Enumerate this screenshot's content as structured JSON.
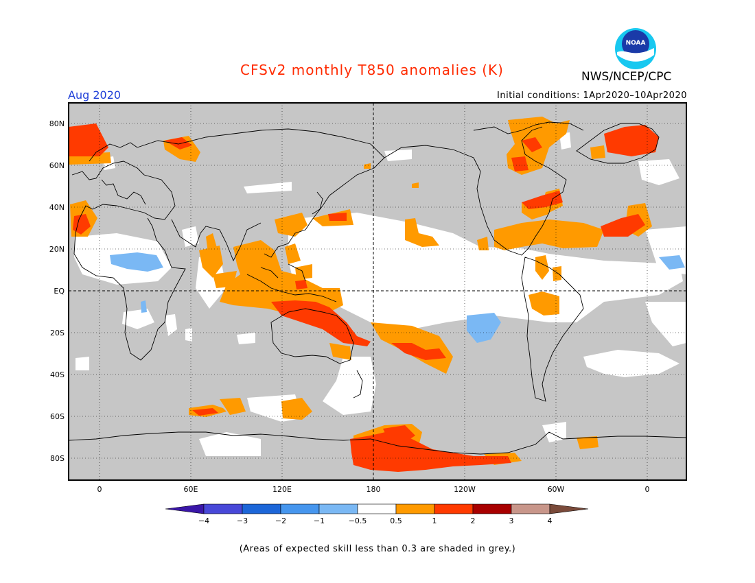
{
  "title": "CFSv2 monthly T850 anomalies (K)",
  "month": "Aug 2020",
  "initial_conditions": "Initial conditions: 1Apr2020–10Apr2020",
  "agency": "NWS/NCEP/CPC",
  "logo": {
    "text": "NOAA",
    "colors": {
      "outer": "#18c8f0",
      "inner": "#1a3aa8",
      "bird": "#ffffff"
    }
  },
  "lat_labels": [
    "80N",
    "60N",
    "40N",
    "20N",
    "EQ",
    "20S",
    "40S",
    "60S",
    "80S"
  ],
  "lon_labels": [
    "0",
    "60E",
    "120E",
    "180",
    "120W",
    "60W",
    "0"
  ],
  "colorbar": {
    "labels": [
      "−4",
      "−3",
      "−2",
      "−1",
      "−0.5",
      "0.5",
      "1",
      "2",
      "3",
      "4"
    ],
    "colors": [
      "#3a16a8",
      "#4848d8",
      "#1c66d8",
      "#4696ee",
      "#7ab8f4",
      "#ffffff",
      "#ff9a00",
      "#ff3a00",
      "#a80000",
      "#c8968a",
      "#7a4a3a"
    ]
  },
  "colors": {
    "grey": "#c6c6c6",
    "white": "#ffffff",
    "orange": "#ff9a00",
    "red": "#ff3a00",
    "lightblue": "#7ab8f4"
  },
  "note": "(Areas of expected skill less than 0.3 are shaded in grey.)"
}
